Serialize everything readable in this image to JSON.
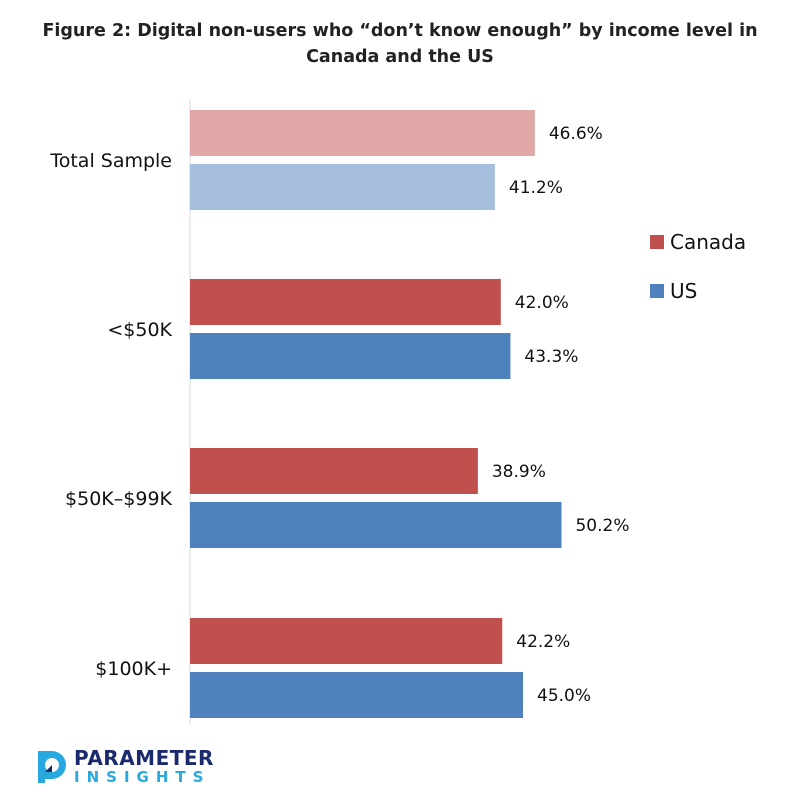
{
  "colors": {
    "canada": "#c0504d",
    "us": "#4f81bd",
    "canada_light": "#dfa7a6",
    "us_light": "#a7bfde",
    "logo_dark": "#1a2a6c",
    "logo_light": "#29a8e0"
  },
  "chart_data": {
    "type": "bar",
    "orientation": "horizontal",
    "title": "Figure 2: Digital non-users who “don’t know enough” by income level in Canada and the US",
    "categories": [
      "Total Sample",
      "<$50K",
      "$50K–$99K",
      "$100K+"
    ],
    "series": [
      {
        "name": "Canada",
        "values": [
          46.6,
          42.0,
          38.9,
          42.2
        ],
        "labels": [
          "46.6%",
          "42.0%",
          "38.9%",
          "42.2%"
        ]
      },
      {
        "name": "US",
        "values": [
          41.2,
          43.3,
          50.2,
          45.0
        ],
        "labels": [
          "41.2%",
          "43.3%",
          "50.2%",
          "45.0%"
        ]
      }
    ],
    "xlim": [
      0,
      60
    ],
    "legend_position": "right",
    "grid": false,
    "highlighted_category_faded": "Total Sample"
  },
  "logo": {
    "line1": "PARAMETER",
    "line2": "INSIGHTS"
  }
}
